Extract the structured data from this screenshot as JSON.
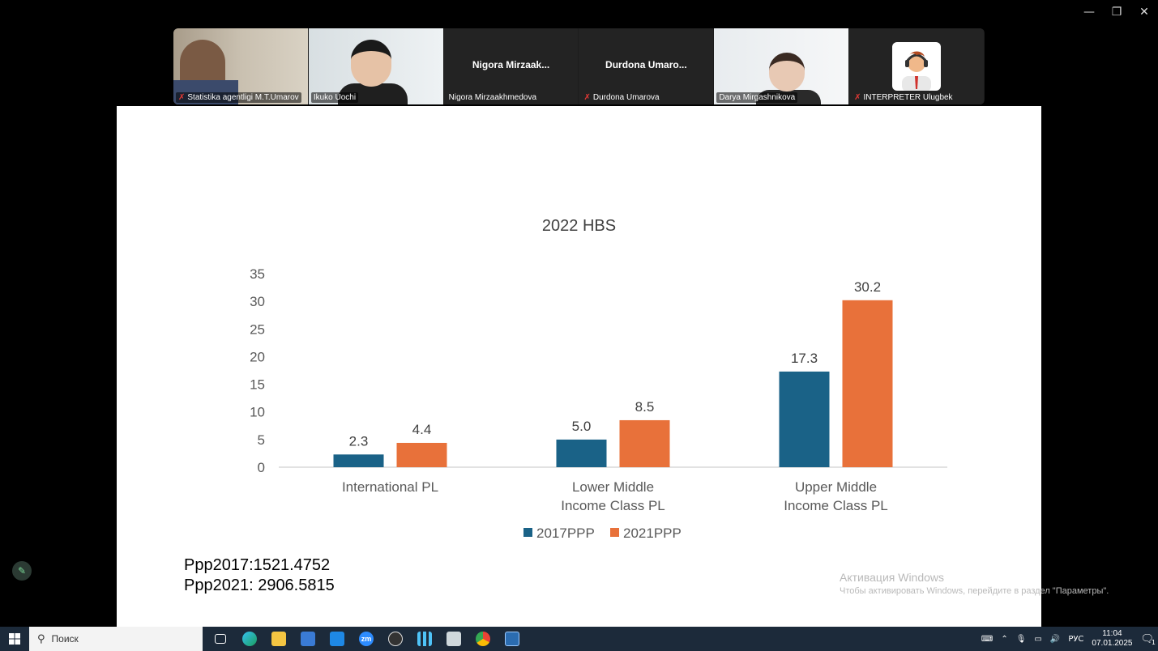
{
  "window": {
    "minimize": "—",
    "restore": "❐",
    "close": "✕"
  },
  "participants": [
    {
      "name": "Statistika agentligi M.T.Umarov",
      "muted": true,
      "video": "man"
    },
    {
      "name": "Ikuko Uochi",
      "muted": false,
      "video": "woman",
      "active": true
    },
    {
      "name": "Nigora Mirzaakhmedova",
      "display_name": "Nigora  Mirzaak...",
      "muted": false,
      "video": "none"
    },
    {
      "name": "Durdona Umarova",
      "display_name": "Durdona  Umaro...",
      "muted": true,
      "video": "none"
    },
    {
      "name": "Darya Mirgashnikova",
      "muted": false,
      "video": "woman2"
    },
    {
      "name": "INTERPRETER Ulugbek",
      "muted": true,
      "video": "avatar"
    }
  ],
  "slide": {
    "ppp2017": "Ppp2017:1521.4752",
    "ppp2021": "Ppp2021: 2906.5815",
    "watermark_title": "Активация Windows",
    "watermark_text": "Чтобы активировать Windows, перейдите в раздел \"Параметры\"."
  },
  "chart_data": {
    "type": "bar",
    "title": "2022 HBS",
    "categories": [
      [
        "International PL"
      ],
      [
        "Lower Middle",
        "Income Class PL"
      ],
      [
        "Upper Middle",
        "Income Class PL"
      ]
    ],
    "series": [
      {
        "name": "2017PPP",
        "color": "#1a6287",
        "values": [
          2.3,
          5.0,
          17.3
        ],
        "labels": [
          "2.3",
          "5.0",
          "17.3"
        ]
      },
      {
        "name": "2021PPP",
        "color": "#e8713a",
        "values": [
          4.4,
          8.5,
          30.2
        ],
        "labels": [
          "4.4",
          "8.5",
          "30.2"
        ]
      }
    ],
    "ylim": [
      0,
      35
    ],
    "yticks": [
      0,
      5,
      10,
      15,
      20,
      25,
      30,
      35
    ],
    "legend": "bottom",
    "grid": false
  },
  "taskbar": {
    "search_placeholder": "Поиск",
    "lang": "РУС",
    "time": "11:04",
    "date": "07.01.2025",
    "notif_count": "1"
  }
}
